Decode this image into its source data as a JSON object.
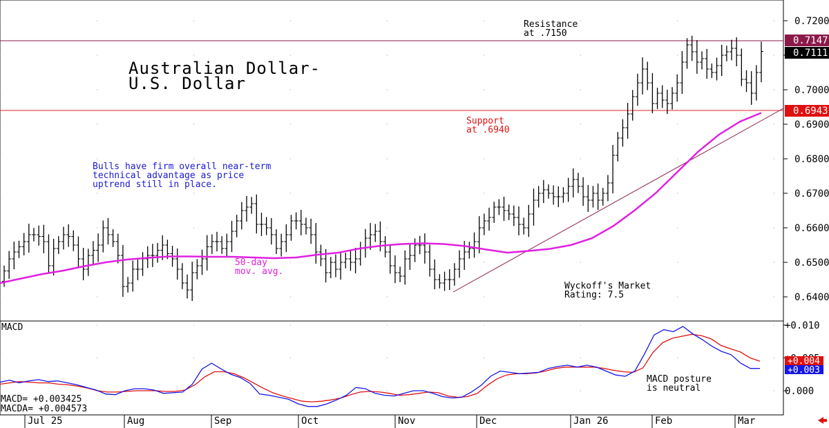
{
  "title_line1": "Australian Dollar-",
  "title_line2": "U.S. Dollar",
  "annotations": {
    "resistance_1": "Resistance",
    "resistance_2": "at .7150",
    "support_1": "Support",
    "support_2": "at .6940",
    "comment_1": "Bulls have firm overall near-term",
    "comment_2": "technical advantage as price",
    "comment_3": "uptrend still in place.",
    "ma_1": "50-day",
    "ma_2": "mov. avg.",
    "rating_1": "Wyckoff's Market",
    "rating_2": "Rating: 7.5",
    "macd_note_1": "MACD posture",
    "macd_note_2": "is neutral"
  },
  "macd_panel": {
    "label": "MACD",
    "macd_readout": "MACD=  +0.003425",
    "macda_readout": "MACDA= +0.004573"
  },
  "price_badges": {
    "resistance": "0.7147",
    "last": "0.7111",
    "support": "0.6943"
  },
  "macd_badges": {
    "macda": "+0.004",
    "macd": "+0.003"
  },
  "colors": {
    "resistance_line": "#8b1a4a",
    "support_line": "#e0202a",
    "moving_average": "#e020e0",
    "trendline": "#8b1a4a",
    "macd": "#1515e6",
    "macda": "#e01010",
    "comment_text": "#1a1ad0",
    "support_text": "#e01010"
  },
  "chart_data": [
    {
      "type": "ohlc",
      "name": "price",
      "x_labels": [
        "Jul 25",
        "Aug",
        "Sep",
        "Oct",
        "Nov",
        "Dec",
        "Jan 26",
        "Feb",
        "Mar"
      ],
      "y_ticks": [
        "0.7200",
        "0.7100",
        "0.7000",
        "0.6900",
        "0.6800",
        "0.6700",
        "0.6600",
        "0.6500",
        "0.6400"
      ],
      "ylim": [
        0.6333,
        0.7257
      ],
      "resistance": 0.7147,
      "support": 0.6943,
      "last": 0.7111,
      "series": [
        {
          "kind": "ohlc",
          "closes": [
            0.6475,
            0.651,
            0.653,
            0.6545,
            0.656,
            0.658,
            0.658,
            0.6575,
            0.656,
            0.649,
            0.654,
            0.656,
            0.658,
            0.6575,
            0.655,
            0.651,
            0.648,
            0.652,
            0.6535,
            0.655,
            0.66,
            0.658,
            0.656,
            0.652,
            0.643,
            0.644,
            0.648,
            0.648,
            0.651,
            0.652,
            0.652,
            0.6535,
            0.655,
            0.6525,
            0.651,
            0.648,
            0.644,
            0.642,
            0.647,
            0.649,
            0.651,
            0.6545,
            0.656,
            0.656,
            0.654,
            0.656,
            0.659,
            0.662,
            0.665,
            0.666,
            0.667,
            0.661,
            0.661,
            0.66,
            0.658,
            0.654,
            0.656,
            0.658,
            0.662,
            0.662,
            0.661,
            0.66,
            0.658,
            0.653,
            0.651,
            0.647,
            0.65,
            0.648,
            0.65,
            0.651,
            0.65,
            0.651,
            0.654,
            0.657,
            0.658,
            0.659,
            0.656,
            0.653,
            0.649,
            0.647,
            0.646,
            0.651,
            0.652,
            0.655,
            0.655,
            0.653,
            0.648,
            0.645,
            0.644,
            0.645,
            0.645,
            0.648,
            0.651,
            0.653,
            0.654,
            0.656,
            0.66,
            0.662,
            0.663,
            0.666,
            0.666,
            0.665,
            0.664,
            0.663,
            0.661,
            0.66,
            0.664,
            0.668,
            0.67,
            0.671,
            0.67,
            0.669,
            0.669,
            0.67,
            0.672,
            0.674,
            0.672,
            0.669,
            0.668,
            0.67,
            0.668,
            0.67,
            0.673,
            0.681,
            0.686,
            0.689,
            0.693,
            0.698,
            0.702,
            0.706,
            0.702,
            0.696,
            0.699,
            0.697,
            0.696,
            0.699,
            0.702,
            0.708,
            0.713,
            0.711,
            0.708,
            0.709,
            0.706,
            0.705,
            0.707,
            0.71,
            0.711,
            0.712,
            0.71,
            0.703,
            0.702,
            0.699,
            0.705,
            0.7111
          ]
        }
      ],
      "moving_average": {
        "name": "50-day mov. avg.",
        "values": [
          0.644,
          0.6453,
          0.6466,
          0.6476,
          0.6489,
          0.65,
          0.6508,
          0.6513,
          0.6517,
          0.6517,
          0.6516,
          0.6516,
          0.6514,
          0.6512,
          0.6514,
          0.6522,
          0.6528,
          0.654,
          0.6548,
          0.6553,
          0.6555,
          0.6553,
          0.6547,
          0.6537,
          0.6528,
          0.6533,
          0.6539,
          0.655,
          0.657,
          0.6605,
          0.665,
          0.67,
          0.676,
          0.682,
          0.687,
          0.6908,
          0.6933
        ]
      }
    },
    {
      "type": "line",
      "name": "MACD",
      "y_ticks": [
        "+0.010",
        "+0.005",
        "0.000"
      ],
      "ylim": [
        -0.0032,
        0.0105
      ],
      "series": [
        {
          "name": "MACD",
          "values": [
            0.0013,
            0.0016,
            0.0012,
            0.0015,
            0.0017,
            0.0014,
            0.0015,
            0.0012,
            0.0009,
            0.0005,
            0.0001,
            -0.0005,
            -0.0006,
            0.0,
            0.0003,
            0.0003,
            0.0001,
            -0.0004,
            -0.0003,
            -0.0002,
            0.001,
            0.0033,
            0.0042,
            0.0033,
            0.0025,
            0.002,
            0.0011,
            -0.0005,
            -0.0007,
            -0.001,
            -0.0013,
            -0.002,
            -0.0024,
            -0.0024,
            -0.002,
            -0.0014,
            -0.0007,
            0.0005,
            0.0003,
            -0.0004,
            -0.0007,
            -0.0008,
            -0.0004,
            0.0,
            0.0,
            -0.0004,
            -0.0009,
            -0.0011,
            -0.001,
            -0.0002,
            0.0008,
            0.0022,
            0.003,
            0.0028,
            0.0026,
            0.0027,
            0.0028,
            0.0034,
            0.0037,
            0.0039,
            0.0036,
            0.0039,
            0.0036,
            0.003,
            0.0024,
            0.0022,
            0.003,
            0.0056,
            0.0085,
            0.0093,
            0.009,
            0.0098,
            0.0087,
            0.0078,
            0.0068,
            0.006,
            0.0055,
            0.0042,
            0.0034,
            0.0034
          ]
        },
        {
          "name": "MACDA",
          "values": [
            0.001,
            0.0012,
            0.0014,
            0.0013,
            0.0012,
            0.0012,
            0.001,
            0.0009,
            0.0007,
            0.0004,
            0.0,
            -0.0002,
            -0.0002,
            -0.0001,
            0.0,
            0.0,
            0.0,
            -0.0001,
            -0.0001,
            0.0001,
            0.0009,
            0.0021,
            0.0029,
            0.0029,
            0.0026,
            0.002,
            0.0012,
            0.0004,
            -0.0003,
            -0.0008,
            -0.0012,
            -0.0016,
            -0.0017,
            -0.0016,
            -0.0014,
            -0.0011,
            -0.0006,
            -0.0002,
            -0.0001,
            -0.0002,
            -0.0004,
            -0.0007,
            -0.0006,
            -0.0004,
            -0.0002,
            -0.0003,
            -0.0008,
            -0.001,
            -0.0009,
            -0.0004,
            0.0008,
            0.0018,
            0.0024,
            0.0026,
            0.0026,
            0.0027,
            0.003,
            0.0034,
            0.0036,
            0.0036,
            0.0036,
            0.0036,
            0.0034,
            0.0031,
            0.0029,
            0.0028,
            0.0035,
            0.0058,
            0.0073,
            0.008,
            0.0083,
            0.0086,
            0.0084,
            0.0079,
            0.0069,
            0.0064,
            0.0059,
            0.005,
            0.0045
          ]
        }
      ]
    }
  ]
}
